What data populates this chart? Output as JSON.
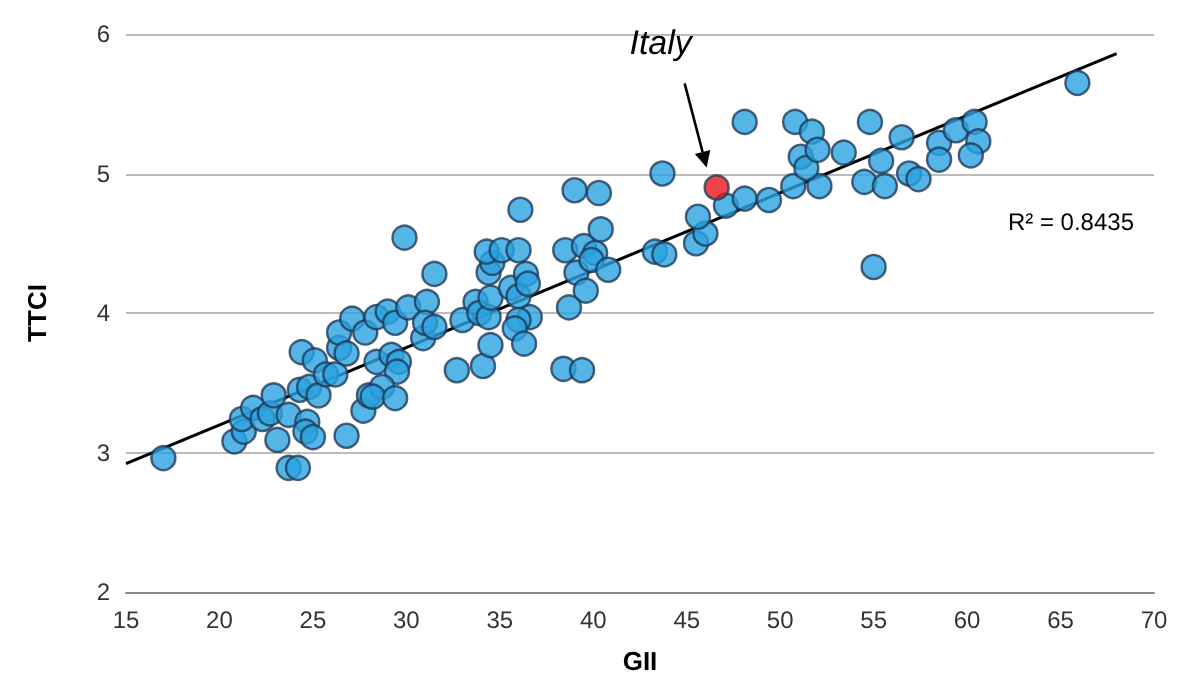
{
  "chart_data": {
    "type": "scatter",
    "xlabel": "GII",
    "ylabel": "TTCI",
    "xlim": [
      15,
      70
    ],
    "xticks": [
      15,
      20,
      25,
      30,
      35,
      40,
      45,
      50,
      55,
      60,
      65,
      70
    ],
    "ylim": [
      2,
      6
    ],
    "yticks": [
      2,
      3,
      4,
      5,
      6
    ],
    "grid": "y",
    "marker": "circle",
    "annotations": [
      "Italy",
      "R² = 0.8435"
    ],
    "series": [
      {
        "color": "#29a3e0",
        "x": [
          17.0,
          20.8,
          21.3,
          21.2,
          21.8,
          22.3,
          22.7,
          22.9,
          23.1,
          23.7,
          23.7,
          24.2,
          24.3,
          24.4,
          24.7,
          24.6,
          25.0,
          24.8,
          25.1,
          25.3,
          25.7,
          26.2,
          26.4,
          26.4,
          26.8,
          27.1,
          26.8,
          27.7,
          27.8,
          28.0,
          28.4,
          28.4,
          29.2,
          29.6,
          29.5,
          28.7,
          28.2,
          29.4,
          29.0,
          29.4,
          30.1,
          31.1,
          30.9,
          31.0,
          31.5,
          31.5,
          29.9,
          32.7,
          33.0,
          33.7,
          33.9,
          34.4,
          34.5,
          34.1,
          34.5,
          34.4,
          34.6,
          34.3,
          35.1,
          36.0,
          36.1,
          35.6,
          36.0,
          36.4,
          36.5,
          36.6,
          36.0,
          35.8,
          36.3,
          38.5,
          39.0,
          40.3,
          39.5,
          40.1,
          40.4,
          39.1,
          39.9,
          40.8,
          39.6,
          38.7,
          38.4,
          39.4,
          43.7,
          48.1,
          50.8,
          51.7,
          54.8,
          43.3,
          43.8,
          45.5,
          46.0,
          45.6,
          47.1,
          48.1,
          49.4,
          50.7,
          52.1,
          51.1,
          51.4,
          52.0,
          53.4,
          54.5,
          55.4,
          55.6,
          55.0,
          56.5,
          65.9,
          58.5,
          59.4,
          60.4,
          60.6,
          58.5,
          60.2,
          56.9,
          57.4
        ],
        "values": [
          2.96,
          3.08,
          3.15,
          3.24,
          3.32,
          3.24,
          3.28,
          3.41,
          3.09,
          3.27,
          2.89,
          2.89,
          3.45,
          3.72,
          3.22,
          3.15,
          3.11,
          3.47,
          3.66,
          3.41,
          3.56,
          3.56,
          3.75,
          3.86,
          3.71,
          3.96,
          3.12,
          3.3,
          3.86,
          3.41,
          3.97,
          3.65,
          3.7,
          3.65,
          3.58,
          3.47,
          3.4,
          3.39,
          4.01,
          3.93,
          4.04,
          4.08,
          3.82,
          3.93,
          3.9,
          4.28,
          4.54,
          3.59,
          3.95,
          4.08,
          4.0,
          3.97,
          4.11,
          3.62,
          3.77,
          4.29,
          4.36,
          4.44,
          4.45,
          4.45,
          4.74,
          4.18,
          4.12,
          4.28,
          4.21,
          3.97,
          3.95,
          3.89,
          3.78,
          4.45,
          4.88,
          4.86,
          4.48,
          4.43,
          4.6,
          4.29,
          4.38,
          4.31,
          4.16,
          4.04,
          3.6,
          3.59,
          5.0,
          5.37,
          5.37,
          5.3,
          5.37,
          4.44,
          4.42,
          4.5,
          4.57,
          4.69,
          4.77,
          4.82,
          4.81,
          4.91,
          4.91,
          5.12,
          5.04,
          5.17,
          5.15,
          4.94,
          5.09,
          4.91,
          4.33,
          5.26,
          5.65,
          5.22,
          5.31,
          5.37,
          5.23,
          5.1,
          5.13,
          5.0,
          4.96
        ]
      },
      {
        "color": "#e8141b",
        "x": [
          46.6
        ],
        "values": [
          4.9
        ]
      },
      {
        "type": "line",
        "color": "#000000",
        "marker": "none",
        "x": [
          15,
          68
        ],
        "values": [
          2.92,
          5.86
        ]
      }
    ]
  }
}
